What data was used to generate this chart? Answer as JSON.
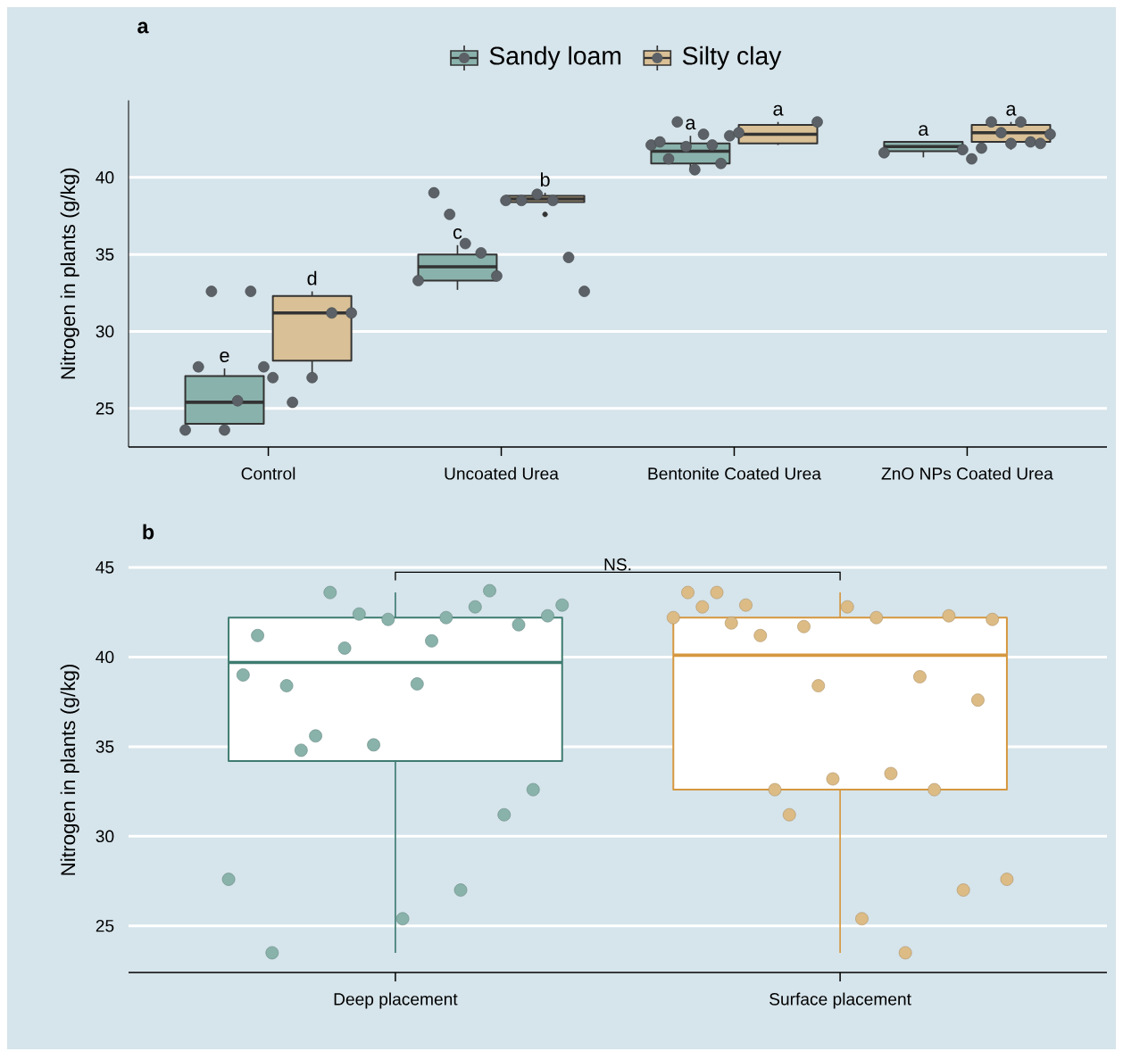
{
  "chart_data": [
    {
      "type": "box",
      "title": "a",
      "ylabel": "Nitrogen in plants (g/kg)",
      "categories": [
        "Control",
        "Uncoated Urea",
        "Bentonite Coated Urea",
        "ZnO NPs Coated Urea"
      ],
      "ylim": [
        22.5,
        45
      ],
      "yticks": [
        25,
        30,
        35,
        40
      ],
      "grid": "y",
      "legend": "top",
      "series": [
        {
          "name": "Sandy loam",
          "color": "#8ab2ac",
          "boxes": [
            {
              "low": 23.6,
              "q1": 24.0,
              "median": 25.4,
              "q3": 27.1,
              "high": 27.6
            },
            {
              "low": 32.7,
              "q1": 33.3,
              "median": 34.2,
              "q3": 35.0,
              "high": 35.6
            },
            {
              "low": 40.5,
              "q1": 40.9,
              "median": 41.7,
              "q3": 42.2,
              "high": 42.7
            },
            {
              "low": 41.3,
              "q1": 41.7,
              "median": 42.0,
              "q3": 42.3,
              "high": 42.3
            }
          ]
        },
        {
          "name": "Silty clay",
          "color": "#d9c096",
          "boxes": [
            {
              "low": 27.0,
              "q1": 28.1,
              "median": 31.2,
              "q3": 32.3,
              "high": 32.6
            },
            {
              "low": 38.4,
              "q1": 38.4,
              "median": 38.6,
              "q3": 38.8,
              "high": 39.0,
              "outliers": [
                37.6
              ]
            },
            {
              "low": 42.1,
              "q1": 42.2,
              "median": 42.8,
              "q3": 43.4,
              "high": 43.6
            },
            {
              "low": 41.8,
              "q1": 42.3,
              "median": 42.9,
              "q3": 43.4,
              "high": 43.6
            }
          ]
        },
        {
          "type": "scatter",
          "color": "#5b6166",
          "x": [
            "Control",
            "Control",
            "Control",
            "Control",
            "Control",
            "Control",
            "Control",
            "Uncoated Urea",
            "Uncoated Urea",
            "Uncoated Urea",
            "Uncoated Urea",
            "Uncoated Urea",
            "Uncoated Urea",
            "Bentonite Coated Urea",
            "Bentonite Coated Urea",
            "Bentonite Coated Urea",
            "Bentonite Coated Urea",
            "Bentonite Coated Urea",
            "Bentonite Coated Urea",
            "Bentonite Coated Urea",
            "Bentonite Coated Urea",
            "Bentonite Coated Urea",
            "Bentonite Coated Urea",
            "ZnO NPs Coated Urea",
            "ZnO NPs Coated Urea"
          ],
          "values": [
            23.6,
            27.7,
            32.6,
            23.6,
            25.5,
            32.6,
            27.7,
            33.3,
            39.0,
            37.6,
            35.7,
            35.1,
            33.6,
            42.1,
            42.3,
            41.2,
            43.6,
            42.0,
            40.5,
            42.8,
            42.1,
            40.9,
            42.7,
            41.6,
            41.8
          ]
        },
        {
          "type": "scatter",
          "color": "#5b6166",
          "x": [
            "Control",
            "Control",
            "Control",
            "Control",
            "Control",
            "Uncoated Urea",
            "Uncoated Urea",
            "Uncoated Urea",
            "Uncoated Urea",
            "Uncoated Urea",
            "Uncoated Urea",
            "Bentonite Coated Urea",
            "Bentonite Coated Urea",
            "ZnO NPs Coated Urea",
            "ZnO NPs Coated Urea",
            "ZnO NPs Coated Urea",
            "ZnO NPs Coated Urea",
            "ZnO NPs Coated Urea",
            "ZnO NPs Coated Urea",
            "ZnO NPs Coated Urea",
            "ZnO NPs Coated Urea",
            "ZnO NPs Coated Urea"
          ],
          "values": [
            27.0,
            25.4,
            27.0,
            31.2,
            31.2,
            38.5,
            38.5,
            38.9,
            38.5,
            34.8,
            32.6,
            42.9,
            43.6,
            41.2,
            41.9,
            43.6,
            42.9,
            42.2,
            43.6,
            42.3,
            42.2,
            42.8
          ]
        }
      ],
      "annotations": [
        "e",
        "d",
        "c",
        "b",
        "a",
        "a",
        "a",
        "a"
      ]
    },
    {
      "type": "box",
      "title": "b",
      "ylabel": "Nitrogen in plants (g/kg)",
      "categories": [
        "Deep placement",
        "Surface placement"
      ],
      "ylim": [
        22.4,
        45
      ],
      "yticks": [
        25,
        30,
        35,
        40,
        45
      ],
      "grid": "y",
      "boxes": [
        {
          "low": 23.5,
          "q1": 34.2,
          "median": 39.7,
          "q3": 42.2,
          "high": 43.6
        },
        {
          "low": 23.5,
          "q1": 32.6,
          "median": 40.1,
          "q3": 42.2,
          "high": 43.6
        }
      ],
      "colors": [
        "#3e7b70",
        "#d5973f"
      ],
      "series": [
        {
          "type": "scatter",
          "color": "#88b2aa",
          "x": [
            "Deep placement",
            "Deep placement",
            "Deep placement",
            "Deep placement",
            "Deep placement",
            "Deep placement",
            "Deep placement",
            "Deep placement",
            "Deep placement",
            "Deep placement",
            "Deep placement",
            "Deep placement",
            "Deep placement",
            "Deep placement",
            "Deep placement",
            "Deep placement",
            "Deep placement",
            "Deep placement",
            "Deep placement",
            "Deep placement",
            "Deep placement",
            "Deep placement",
            "Deep placement",
            "Deep placement"
          ],
          "values": [
            27.6,
            39.0,
            41.2,
            23.5,
            38.4,
            34.8,
            35.6,
            43.6,
            40.5,
            42.4,
            35.1,
            42.1,
            25.4,
            38.5,
            40.9,
            42.2,
            27.0,
            42.8,
            43.7,
            31.2,
            41.8,
            32.6,
            42.3,
            42.9
          ]
        },
        {
          "type": "scatter",
          "color": "#dcbb85",
          "x": [
            "Surface placement",
            "Surface placement",
            "Surface placement",
            "Surface placement",
            "Surface placement",
            "Surface placement",
            "Surface placement",
            "Surface placement",
            "Surface placement",
            "Surface placement",
            "Surface placement",
            "Surface placement",
            "Surface placement",
            "Surface placement",
            "Surface placement",
            "Surface placement",
            "Surface placement",
            "Surface placement",
            "Surface placement",
            "Surface placement",
            "Surface placement",
            "Surface placement",
            "Surface placement",
            "Surface placement"
          ],
          "values": [
            42.2,
            43.6,
            42.8,
            43.6,
            41.9,
            42.9,
            41.2,
            32.6,
            31.2,
            41.7,
            38.4,
            33.2,
            42.8,
            25.4,
            42.2,
            33.5,
            23.5,
            38.9,
            32.6,
            42.3,
            27.0,
            37.6,
            42.1,
            27.6
          ]
        }
      ],
      "annotations": [
        "NS."
      ]
    }
  ]
}
